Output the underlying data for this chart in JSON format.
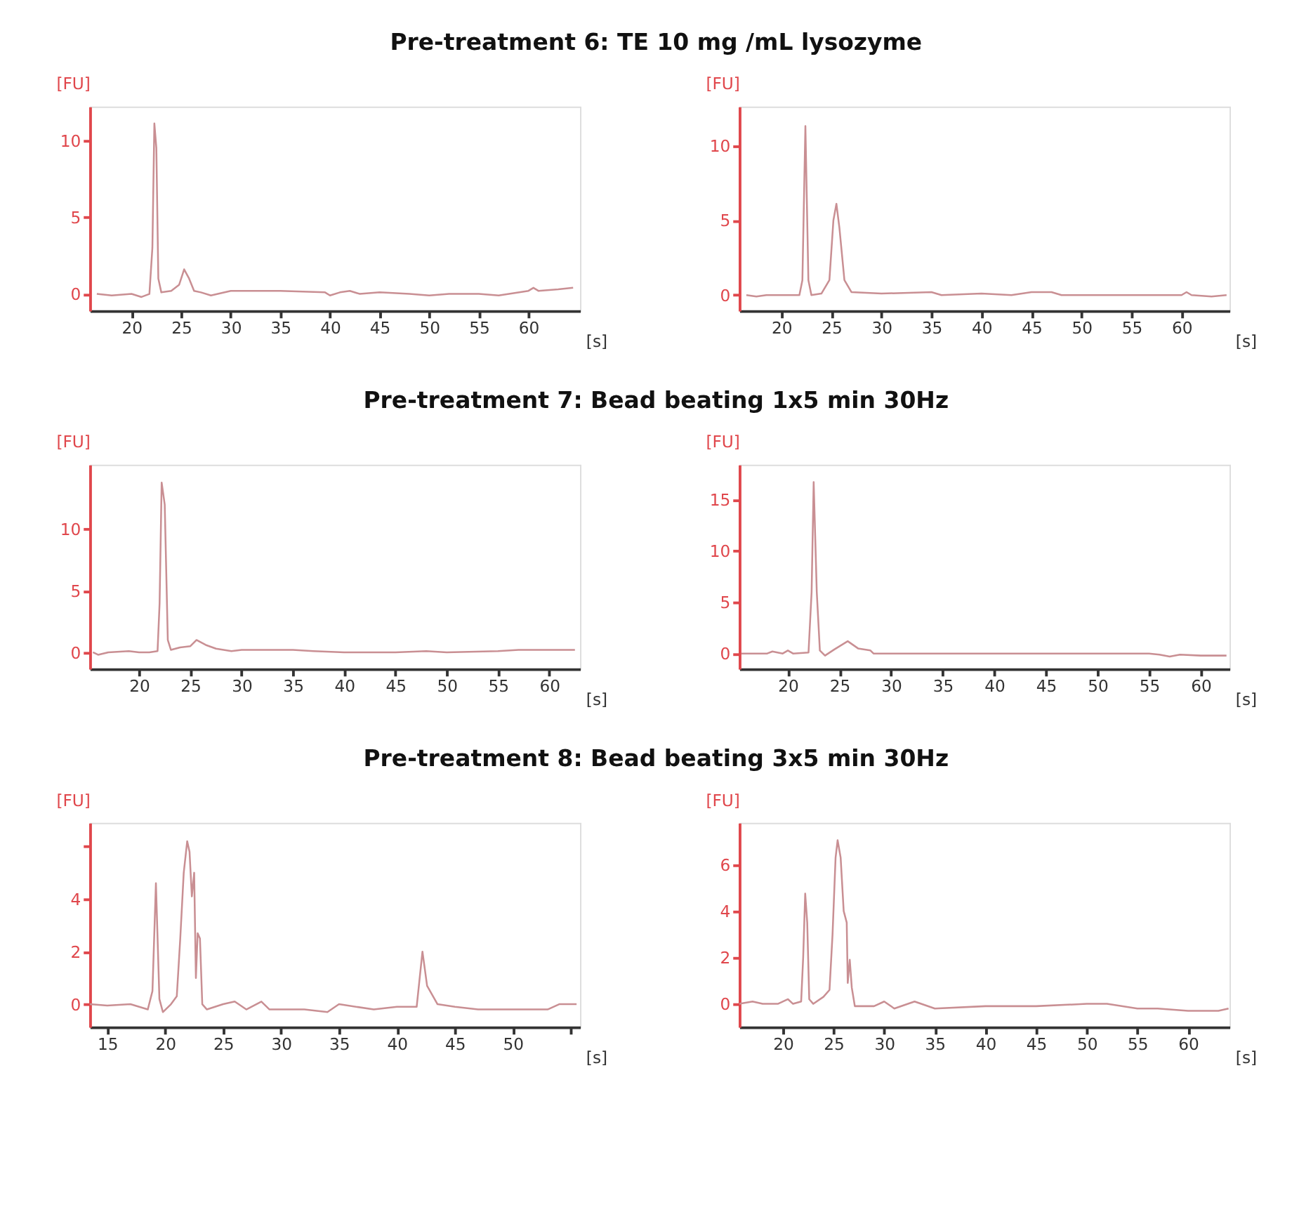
{
  "chart_data": [
    {
      "type": "line",
      "title": "Pre-treatment 6: TE 10 mg /mL lysozyme",
      "xlabel": "[s]",
      "ylabel": "[FU]",
      "xlim": [
        15.8,
        65.2
      ],
      "ylim": [
        -1.1,
        12.2
      ],
      "xticks": [
        20,
        25,
        30,
        35,
        40,
        45,
        50,
        55,
        60
      ],
      "yticks": [
        0,
        5,
        10
      ],
      "line_style": "solid",
      "x": [
        16.5,
        18,
        20,
        21,
        21.8,
        22.1,
        22.3,
        22.5,
        22.7,
        23,
        24,
        24.8,
        25.3,
        25.8,
        26.3,
        27,
        28,
        30,
        35,
        39.5,
        40,
        41,
        42,
        43,
        45,
        48,
        50,
        52,
        55,
        57,
        60,
        60.5,
        61,
        63,
        64.5
      ],
      "series": [
        {
          "color": "#c98f93",
          "values": [
            0,
            -0.1,
            0,
            -0.2,
            0,
            3,
            11.1,
            9.5,
            1,
            0.1,
            0.2,
            0.6,
            1.6,
            1.0,
            0.2,
            0.1,
            -0.1,
            0.2,
            0.2,
            0.1,
            -0.1,
            0.1,
            0.2,
            0,
            0.1,
            0,
            -0.1,
            0,
            0,
            -0.1,
            0.2,
            0.4,
            0.2,
            0.3,
            0.4
          ]
        }
      ]
    },
    {
      "type": "line",
      "xlabel": "[s]",
      "ylabel": "[FU]",
      "xlim": [
        15.8,
        64.8
      ],
      "ylim": [
        -1.05,
        12.6
      ],
      "xticks": [
        20,
        25,
        30,
        35,
        40,
        45,
        50,
        55,
        60
      ],
      "yticks": [
        0,
        5,
        10
      ],
      "line_style": "solid",
      "x": [
        16.5,
        17.5,
        18.5,
        21.8,
        22.1,
        22.4,
        22.7,
        23,
        24,
        24.8,
        25.2,
        25.5,
        25.8,
        26.3,
        27,
        30,
        35,
        36,
        40,
        43,
        45,
        47,
        48,
        50,
        55,
        60,
        60.5,
        61,
        63,
        64.5
      ],
      "series": [
        {
          "color": "#c98f93",
          "values": [
            0,
            -0.1,
            0,
            0,
            1,
            11.3,
            1,
            0,
            0.1,
            1,
            5,
            6.1,
            4.5,
            1,
            0.2,
            0.1,
            0.2,
            0,
            0.1,
            0,
            0.2,
            0.2,
            0,
            0,
            0,
            0,
            0.2,
            0,
            -0.1,
            0
          ]
        }
      ]
    },
    {
      "type": "line",
      "title": "Pre-treatment 7: Bead beating 1x5 min 30Hz",
      "xlabel": "[s]",
      "ylabel": "[FU]",
      "xlim": [
        15.2,
        63.0
      ],
      "ylim": [
        -1.35,
        15.25
      ],
      "xticks": [
        20,
        25,
        30,
        35,
        40,
        45,
        50,
        55,
        60
      ],
      "yticks": [
        0,
        5,
        10
      ],
      "line_style": "solid",
      "x": [
        15.5,
        16,
        17,
        19,
        20,
        21,
        21.8,
        22,
        22.2,
        22.5,
        22.8,
        23.1,
        24,
        25,
        25.6,
        26.5,
        27.5,
        29,
        30,
        35,
        37,
        40,
        45,
        48,
        50,
        55,
        57,
        60,
        62.5
      ],
      "series": [
        {
          "color": "#c98f93",
          "values": [
            0,
            -0.2,
            0,
            0.1,
            0,
            0,
            0.1,
            4,
            13.8,
            12,
            1,
            0.2,
            0.4,
            0.5,
            1.0,
            0.6,
            0.3,
            0.1,
            0.2,
            0.2,
            0.1,
            0,
            0,
            0.1,
            0,
            0.1,
            0.2,
            0.2,
            0.2
          ]
        }
      ]
    },
    {
      "type": "line",
      "xlabel": "[s]",
      "ylabel": "[FU]",
      "xlim": [
        15.3,
        62.8
      ],
      "ylim": [
        -1.5,
        18.4
      ],
      "xticks": [
        20,
        25,
        30,
        35,
        40,
        45,
        50,
        55,
        60
      ],
      "yticks": [
        0,
        5,
        10,
        15
      ],
      "line_style": "solid",
      "x": [
        15.5,
        18,
        18.5,
        19.5,
        20,
        20.5,
        22,
        22.3,
        22.5,
        22.8,
        23.1,
        23.6,
        24.5,
        25.8,
        26.8,
        28,
        28.3,
        30,
        40,
        50,
        55,
        56,
        57,
        58,
        60,
        62.5
      ],
      "series": [
        {
          "color": "#c98f93",
          "values": [
            0,
            0,
            0.2,
            0,
            0.3,
            0,
            0.1,
            6,
            16.7,
            6,
            0.3,
            -0.2,
            0.4,
            1.2,
            0.5,
            0.3,
            0,
            0,
            0,
            0,
            0,
            -0.1,
            -0.3,
            -0.1,
            -0.2,
            -0.2
          ]
        }
      ]
    },
    {
      "type": "line",
      "title": "Pre-treatment 8: Bead beating 3x5 min 30Hz",
      "xlabel": "[s]",
      "ylabel": "[FU]",
      "xlim": [
        13.5,
        55.8
      ],
      "ylim": [
        -0.87,
        6.9
      ],
      "xticks": [
        15,
        20,
        25,
        30,
        35,
        40,
        45,
        50,
        {
          "value": 55,
          "label": null
        }
      ],
      "yticks": [
        0,
        2,
        4,
        {
          "value": 6,
          "label": null
        }
      ],
      "line_style": "solid",
      "x": [
        13.5,
        15,
        17,
        18.5,
        18.9,
        19.2,
        19.5,
        19.8,
        20.5,
        21,
        21.3,
        21.6,
        21.9,
        22.1,
        22.3,
        22.5,
        22.65,
        22.8,
        23.0,
        23.2,
        23.6,
        25,
        26,
        27,
        28.3,
        29,
        32,
        34,
        35,
        38,
        40,
        41.7,
        42.2,
        42.6,
        43.5,
        45,
        47,
        50,
        53,
        54,
        55.5
      ],
      "series": [
        {
          "color": "#c98f93",
          "values": [
            0,
            -0.05,
            0,
            -0.2,
            0.5,
            4.6,
            0.2,
            -0.3,
            0,
            0.3,
            2.5,
            5,
            6.2,
            5.8,
            4.1,
            5.0,
            1.0,
            2.7,
            2.5,
            0,
            -0.2,
            0,
            0.1,
            -0.2,
            0.1,
            -0.2,
            -0.2,
            -0.3,
            0,
            -0.2,
            -0.1,
            -0.1,
            2.0,
            0.7,
            0,
            -0.1,
            -0.2,
            -0.2,
            -0.2,
            0,
            0
          ]
        }
      ]
    },
    {
      "type": "line",
      "xlabel": "[s]",
      "ylabel": "[FU]",
      "xlim": [
        15.7,
        64.1
      ],
      "ylim": [
        -1.0,
        7.8
      ],
      "xticks": [
        20,
        25,
        30,
        35,
        40,
        45,
        50,
        55,
        60
      ],
      "yticks": [
        0,
        2,
        4,
        6
      ],
      "line_style": "solid",
      "x": [
        15.7,
        17,
        18,
        19.5,
        20.5,
        21,
        21.8,
        22.0,
        22.2,
        22.4,
        22.6,
        23,
        24,
        24.6,
        24.9,
        25.2,
        25.4,
        25.7,
        26,
        26.3,
        26.4,
        26.6,
        26.8,
        27.1,
        29,
        30,
        31,
        33,
        35,
        40,
        45,
        50,
        52,
        55,
        57,
        60,
        63,
        64
      ],
      "series": [
        {
          "color": "#c98f93",
          "values": [
            0,
            0.1,
            0,
            0,
            0.2,
            0,
            0.1,
            2,
            4.75,
            3.5,
            0.2,
            0,
            0.3,
            0.6,
            3,
            6.3,
            7.05,
            6.3,
            4.0,
            3.5,
            0.9,
            1.9,
            0.7,
            -0.1,
            -0.1,
            0.1,
            -0.2,
            0.1,
            -0.2,
            -0.1,
            -0.1,
            0,
            0,
            -0.2,
            -0.2,
            -0.3,
            -0.3,
            -0.2
          ]
        }
      ]
    }
  ]
}
